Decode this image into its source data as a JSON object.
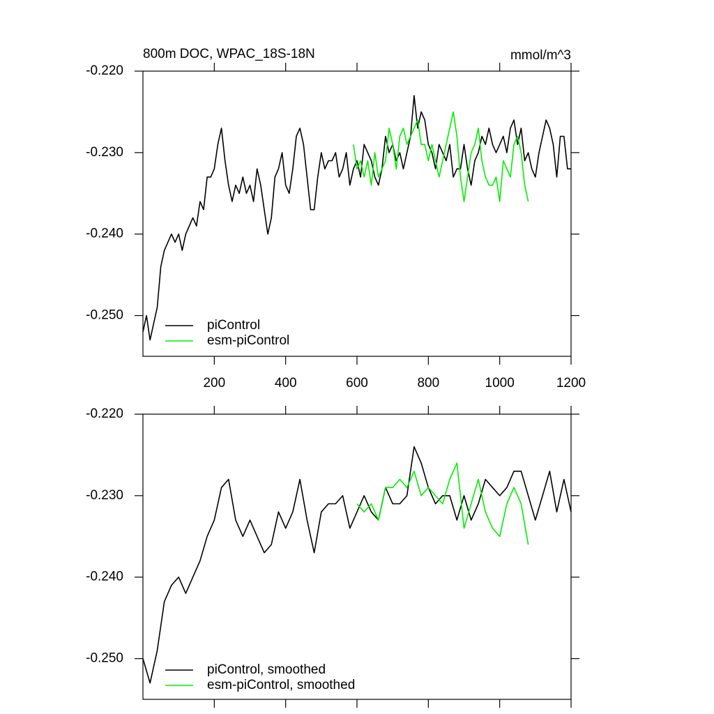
{
  "chart_data": [
    {
      "type": "line",
      "title": "800m DOC, WPAC_18S-18N",
      "units": "mmol/m^3",
      "xlim": [
        0,
        1200
      ],
      "xticks": [
        200,
        400,
        600,
        800,
        1000,
        1200
      ],
      "xticklabels": true,
      "ylim": [
        -0.255,
        -0.22
      ],
      "yticks": [
        {
          "value": -0.22,
          "label": "-0.220"
        },
        {
          "value": -0.23,
          "label": "-0.230"
        },
        {
          "value": -0.24,
          "label": "-0.240"
        },
        {
          "value": -0.25,
          "label": "-0.250"
        }
      ],
      "series": [
        {
          "name": "piControl",
          "color": "#000000",
          "x": [
            0,
            10,
            20,
            30,
            40,
            50,
            60,
            70,
            80,
            90,
            100,
            110,
            120,
            130,
            140,
            150,
            160,
            170,
            180,
            190,
            200,
            210,
            220,
            230,
            240,
            250,
            260,
            270,
            280,
            290,
            300,
            310,
            320,
            330,
            340,
            350,
            360,
            370,
            380,
            390,
            400,
            410,
            420,
            430,
            440,
            450,
            460,
            470,
            480,
            490,
            500,
            510,
            520,
            530,
            540,
            550,
            560,
            570,
            580,
            590,
            600,
            610,
            620,
            630,
            640,
            650,
            660,
            670,
            680,
            690,
            700,
            710,
            720,
            730,
            740,
            750,
            760,
            770,
            780,
            790,
            800,
            810,
            820,
            830,
            840,
            850,
            860,
            870,
            880,
            890,
            900,
            910,
            920,
            930,
            940,
            950,
            960,
            970,
            980,
            990,
            1000,
            1010,
            1020,
            1030,
            1040,
            1050,
            1060,
            1070,
            1080,
            1090,
            1100,
            1110,
            1120,
            1130,
            1140,
            1150,
            1160,
            1170,
            1180,
            1190,
            1200
          ],
          "values": [
            -0.252,
            -0.25,
            -0.253,
            -0.251,
            -0.249,
            -0.244,
            -0.242,
            -0.241,
            -0.24,
            -0.241,
            -0.24,
            -0.242,
            -0.24,
            -0.239,
            -0.238,
            -0.239,
            -0.236,
            -0.237,
            -0.233,
            -0.233,
            -0.232,
            -0.229,
            -0.227,
            -0.231,
            -0.234,
            -0.236,
            -0.234,
            -0.235,
            -0.233,
            -0.235,
            -0.234,
            -0.236,
            -0.232,
            -0.234,
            -0.237,
            -0.24,
            -0.238,
            -0.233,
            -0.232,
            -0.23,
            -0.234,
            -0.235,
            -0.232,
            -0.228,
            -0.227,
            -0.229,
            -0.233,
            -0.237,
            -0.237,
            -0.233,
            -0.23,
            -0.232,
            -0.231,
            -0.231,
            -0.23,
            -0.233,
            -0.232,
            -0.23,
            -0.234,
            -0.232,
            -0.231,
            -0.233,
            -0.229,
            -0.23,
            -0.231,
            -0.233,
            -0.234,
            -0.232,
            -0.228,
            -0.23,
            -0.229,
            -0.231,
            -0.23,
            -0.232,
            -0.23,
            -0.228,
            -0.223,
            -0.227,
            -0.225,
            -0.226,
            -0.229,
            -0.23,
            -0.232,
            -0.229,
            -0.23,
            -0.231,
            -0.229,
            -0.233,
            -0.232,
            -0.232,
            -0.229,
            -0.232,
            -0.234,
            -0.231,
            -0.23,
            -0.228,
            -0.229,
            -0.227,
            -0.229,
            -0.23,
            -0.229,
            -0.228,
            -0.23,
            -0.227,
            -0.226,
            -0.229,
            -0.227,
            -0.231,
            -0.23,
            -0.232,
            -0.233,
            -0.23,
            -0.228,
            -0.226,
            -0.227,
            -0.229,
            -0.233,
            -0.228,
            -0.228,
            -0.232,
            -0.232
          ]
        },
        {
          "name": "esm-piControl",
          "color": "#00ee00",
          "x": [
            590,
            600,
            610,
            620,
            630,
            640,
            650,
            660,
            670,
            680,
            690,
            700,
            710,
            720,
            730,
            740,
            750,
            760,
            770,
            780,
            790,
            800,
            810,
            820,
            830,
            840,
            850,
            860,
            870,
            880,
            890,
            900,
            910,
            920,
            930,
            940,
            950,
            960,
            970,
            980,
            990,
            1000,
            1010,
            1020,
            1030,
            1040,
            1050,
            1060,
            1070,
            1080
          ],
          "values": [
            -0.229,
            -0.232,
            -0.231,
            -0.233,
            -0.231,
            -0.234,
            -0.23,
            -0.233,
            -0.232,
            -0.231,
            -0.227,
            -0.229,
            -0.232,
            -0.228,
            -0.227,
            -0.229,
            -0.228,
            -0.227,
            -0.226,
            -0.229,
            -0.229,
            -0.231,
            -0.229,
            -0.231,
            -0.233,
            -0.231,
            -0.229,
            -0.227,
            -0.225,
            -0.228,
            -0.233,
            -0.236,
            -0.233,
            -0.23,
            -0.229,
            -0.227,
            -0.231,
            -0.233,
            -0.234,
            -0.234,
            -0.233,
            -0.236,
            -0.231,
            -0.232,
            -0.233,
            -0.229,
            -0.228,
            -0.23,
            -0.234,
            -0.236
          ]
        }
      ]
    },
    {
      "type": "line",
      "xlim": [
        0,
        1200
      ],
      "xticks": [
        200,
        400,
        600,
        800,
        1000,
        1200
      ],
      "xticklabels": false,
      "ylim": [
        -0.255,
        -0.22
      ],
      "yticks": [
        {
          "value": -0.22,
          "label": "-0.220"
        },
        {
          "value": -0.23,
          "label": "-0.230"
        },
        {
          "value": -0.24,
          "label": "-0.240"
        },
        {
          "value": -0.25,
          "label": "-0.250"
        }
      ],
      "series": [
        {
          "name": "piControl, smoothed",
          "color": "#000000",
          "x": [
            0,
            20,
            40,
            60,
            80,
            100,
            120,
            140,
            160,
            180,
            200,
            220,
            240,
            260,
            280,
            300,
            320,
            340,
            360,
            380,
            400,
            420,
            440,
            460,
            480,
            500,
            520,
            540,
            560,
            580,
            600,
            620,
            640,
            660,
            680,
            700,
            720,
            740,
            760,
            780,
            800,
            820,
            840,
            860,
            880,
            900,
            920,
            940,
            960,
            980,
            1000,
            1020,
            1040,
            1060,
            1080,
            1100,
            1120,
            1140,
            1160,
            1180,
            1200
          ],
          "values": [
            -0.25,
            -0.253,
            -0.249,
            -0.243,
            -0.241,
            -0.24,
            -0.242,
            -0.24,
            -0.238,
            -0.235,
            -0.233,
            -0.229,
            -0.228,
            -0.233,
            -0.235,
            -0.233,
            -0.235,
            -0.237,
            -0.236,
            -0.232,
            -0.234,
            -0.232,
            -0.228,
            -0.233,
            -0.237,
            -0.232,
            -0.231,
            -0.231,
            -0.23,
            -0.234,
            -0.232,
            -0.23,
            -0.232,
            -0.233,
            -0.229,
            -0.231,
            -0.231,
            -0.23,
            -0.224,
            -0.226,
            -0.229,
            -0.231,
            -0.23,
            -0.23,
            -0.233,
            -0.23,
            -0.233,
            -0.231,
            -0.228,
            -0.229,
            -0.23,
            -0.229,
            -0.227,
            -0.227,
            -0.23,
            -0.233,
            -0.23,
            -0.227,
            -0.232,
            -0.228,
            -0.232
          ]
        },
        {
          "name": "esm-piControl, smoothed",
          "color": "#00ee00",
          "x": [
            600,
            620,
            640,
            660,
            680,
            700,
            720,
            740,
            760,
            780,
            800,
            820,
            840,
            860,
            880,
            900,
            920,
            940,
            960,
            980,
            1000,
            1020,
            1040,
            1060,
            1080
          ],
          "values": [
            -0.231,
            -0.232,
            -0.231,
            -0.233,
            -0.229,
            -0.229,
            -0.228,
            -0.229,
            -0.227,
            -0.23,
            -0.229,
            -0.23,
            -0.231,
            -0.228,
            -0.226,
            -0.234,
            -0.231,
            -0.228,
            -0.232,
            -0.234,
            -0.235,
            -0.231,
            -0.229,
            -0.231,
            -0.236
          ]
        }
      ]
    }
  ]
}
